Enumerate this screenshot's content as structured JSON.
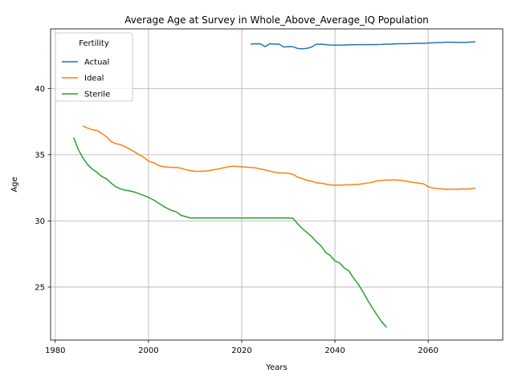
{
  "chart_data": {
    "type": "line",
    "title": "Average Age at Survey in Whole_Above_Average_IQ Population",
    "xlabel": "Years",
    "ylabel": "Age",
    "xlim": [
      1979,
      2076
    ],
    "ylim": [
      21,
      44.5
    ],
    "xticks": [
      1980,
      2000,
      2020,
      2040,
      2060
    ],
    "yticks": [
      25,
      30,
      35,
      40
    ],
    "grid": true,
    "legend": {
      "title": "Fertility",
      "position": "top-left"
    },
    "series": [
      {
        "name": "Actual",
        "color": "#1f77b4",
        "x": [
          2022,
          2023,
          2024,
          2025,
          2026,
          2027,
          2028,
          2029,
          2030,
          2031,
          2032,
          2033,
          2034,
          2035,
          2036,
          2037,
          2038,
          2039,
          2040,
          2041,
          2042,
          2043,
          2044,
          2045,
          2046,
          2047,
          2048,
          2049,
          2050,
          2051,
          2052,
          2053,
          2054,
          2055,
          2056,
          2057,
          2058,
          2059,
          2060,
          2061,
          2062,
          2063,
          2064,
          2065,
          2066,
          2067,
          2068,
          2069,
          2070
        ],
        "y": [
          43.35,
          43.38,
          43.37,
          43.15,
          43.38,
          43.35,
          43.35,
          43.13,
          43.16,
          43.15,
          43.02,
          42.99,
          43.03,
          43.13,
          43.34,
          43.34,
          43.32,
          43.28,
          43.27,
          43.27,
          43.28,
          43.3,
          43.3,
          43.31,
          43.31,
          43.31,
          43.31,
          43.32,
          43.33,
          43.35,
          43.35,
          43.37,
          43.38,
          43.38,
          43.39,
          43.4,
          43.41,
          43.41,
          43.43,
          43.45,
          43.46,
          43.47,
          43.49,
          43.49,
          43.48,
          43.48,
          43.48,
          43.5,
          43.52
        ]
      },
      {
        "name": "Ideal",
        "color": "#ff7f0e",
        "x": [
          1986,
          1987,
          1988,
          1989,
          1990,
          1991,
          1992,
          1993,
          1994,
          1995,
          1996,
          1997,
          1998,
          1999,
          2000,
          2001,
          2002,
          2003,
          2004,
          2005,
          2006,
          2007,
          2008,
          2009,
          2010,
          2011,
          2012,
          2013,
          2014,
          2015,
          2016,
          2017,
          2018,
          2019,
          2020,
          2021,
          2022,
          2023,
          2024,
          2025,
          2026,
          2027,
          2028,
          2029,
          2030,
          2031,
          2032,
          2033,
          2034,
          2035,
          2036,
          2037,
          2038,
          2039,
          2040,
          2041,
          2042,
          2043,
          2044,
          2045,
          2046,
          2047,
          2048,
          2049,
          2050,
          2051,
          2052,
          2053,
          2054,
          2055,
          2056,
          2057,
          2058,
          2059,
          2060,
          2061,
          2062,
          2063,
          2064,
          2065,
          2066,
          2067,
          2068,
          2069,
          2070
        ],
        "y": [
          37.15,
          37.0,
          36.88,
          36.82,
          36.6,
          36.35,
          35.98,
          35.83,
          35.76,
          35.6,
          35.42,
          35.22,
          35.0,
          34.8,
          34.52,
          34.4,
          34.22,
          34.1,
          34.07,
          34.04,
          34.04,
          33.98,
          33.86,
          33.8,
          33.74,
          33.75,
          33.75,
          33.8,
          33.86,
          33.92,
          34.0,
          34.08,
          34.12,
          34.12,
          34.08,
          34.06,
          34.04,
          34.0,
          33.92,
          33.85,
          33.76,
          33.68,
          33.62,
          33.62,
          33.6,
          33.52,
          33.3,
          33.2,
          33.06,
          33.0,
          32.88,
          32.85,
          32.78,
          32.72,
          32.7,
          32.7,
          32.72,
          32.72,
          32.74,
          32.76,
          32.8,
          32.86,
          32.92,
          33.02,
          33.05,
          33.08,
          33.08,
          33.1,
          33.05,
          33.02,
          32.95,
          32.9,
          32.85,
          32.8,
          32.58,
          32.48,
          32.45,
          32.42,
          32.38,
          32.4,
          32.38,
          32.42,
          32.4,
          32.42,
          32.48
        ]
      },
      {
        "name": "Sterile",
        "color": "#2ca02c",
        "x": [
          1984,
          1985,
          1986,
          1987,
          1988,
          1989,
          1990,
          1991,
          1992,
          1993,
          1994,
          1995,
          1996,
          1997,
          1998,
          1999,
          2000,
          2001,
          2002,
          2003,
          2004,
          2005,
          2006,
          2007,
          2008,
          2009,
          2010,
          2020,
          2030,
          2031,
          2032,
          2033,
          2034,
          2035,
          2036,
          2037,
          2038,
          2039,
          2040,
          2041,
          2042,
          2043,
          2044,
          2045,
          2046,
          2047,
          2048,
          2049,
          2050,
          2051
        ],
        "y": [
          36.25,
          35.35,
          34.72,
          34.22,
          33.9,
          33.65,
          33.35,
          33.18,
          32.85,
          32.58,
          32.42,
          32.32,
          32.26,
          32.18,
          32.05,
          31.92,
          31.78,
          31.6,
          31.38,
          31.15,
          30.95,
          30.78,
          30.68,
          30.42,
          30.32,
          30.22,
          30.22,
          30.22,
          30.22,
          30.2,
          29.78,
          29.42,
          29.12,
          28.82,
          28.42,
          28.12,
          27.62,
          27.38,
          26.98,
          26.82,
          26.45,
          26.22,
          25.68,
          25.22,
          24.65,
          24.02,
          23.45,
          22.9,
          22.4,
          21.98
        ]
      }
    ]
  }
}
